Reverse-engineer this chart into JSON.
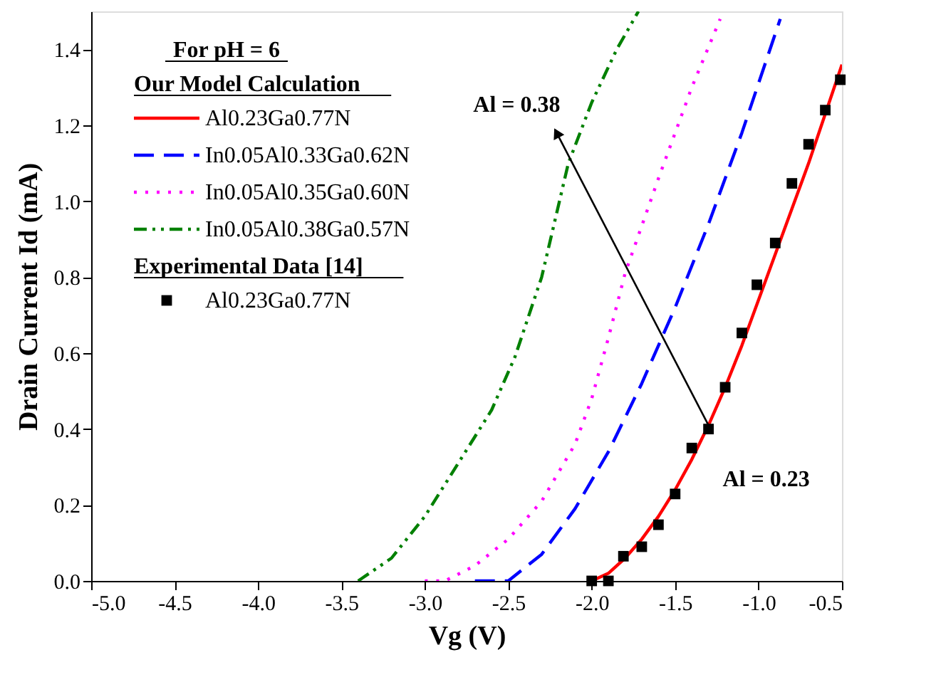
{
  "chart_data": {
    "type": "line",
    "xlabel": "Vg (V)",
    "ylabel": "Drain Current Id (mA)",
    "legend_title": "For pH = 6",
    "xlim": [
      -5.0,
      -0.5
    ],
    "ylim": [
      0,
      1.5
    ],
    "xticks": [
      {
        "value": -5.0,
        "label": "-5.0"
      },
      -4.5,
      {
        "value": -4.0,
        "label": "-4.0"
      },
      -3.5,
      {
        "value": -3.0,
        "label": "-3.0"
      },
      -2.5,
      {
        "value": -2.0,
        "label": "-2.0"
      },
      -1.5,
      {
        "value": -1.0,
        "label": "-1.0"
      },
      -0.5
    ],
    "yticks": [
      {
        "value": 0,
        "label": "0.0"
      },
      0.2,
      0.4,
      0.6,
      0.8,
      {
        "value": 1.0,
        "label": "1.0"
      },
      1.2,
      1.4
    ],
    "grid": false,
    "legend": "top left",
    "series": [
      {
        "name": "Al0.23Ga0.77N",
        "color": "#ff0000",
        "line_style": "solid",
        "x": [
          -2.0,
          -1.9,
          -1.8,
          -1.7,
          -1.6,
          -1.5,
          -1.4,
          -1.3,
          -1.2,
          -1.1,
          -1.0,
          -0.9,
          -0.8,
          -0.7,
          -0.6,
          -0.5
        ],
        "values": [
          0,
          0.02,
          0.06,
          0.11,
          0.17,
          0.24,
          0.32,
          0.41,
          0.51,
          0.62,
          0.74,
          0.86,
          0.98,
          1.1,
          1.23,
          1.36
        ]
      },
      {
        "name": "In0.05Al0.33Ga0.62N",
        "color": "#0000ff",
        "line_style": "dashed",
        "x": [
          -2.7,
          -2.5,
          -2.3,
          -2.1,
          -1.9,
          -1.7,
          -1.5,
          -1.3,
          -1.1,
          -0.87
        ],
        "values": [
          0,
          0,
          0.07,
          0.19,
          0.34,
          0.52,
          0.72,
          0.94,
          1.18,
          1.48
        ]
      },
      {
        "name": "In0.05Al0.35Ga0.60N",
        "color": "#ff00ff",
        "line_style": "dotted",
        "x": [
          -3.0,
          -2.88,
          -2.7,
          -2.5,
          -2.3,
          -2.1,
          -2.0,
          -1.9,
          -1.8,
          -1.6,
          -1.4,
          -1.23
        ],
        "values": [
          0,
          0,
          0.04,
          0.11,
          0.21,
          0.36,
          0.48,
          0.64,
          0.81,
          1.06,
          1.3,
          1.48
        ]
      },
      {
        "name": "In0.05Al0.38Ga0.57N",
        "color": "#008000",
        "line_style": "dashdot",
        "x": [
          -3.4,
          -3.2,
          -3.0,
          -2.8,
          -2.6,
          -2.46,
          -2.3,
          -2.14,
          -2.0,
          -1.85,
          -1.72
        ],
        "values": [
          0,
          0.06,
          0.17,
          0.31,
          0.45,
          0.59,
          0.8,
          1.1,
          1.26,
          1.4,
          1.5
        ]
      },
      {
        "name": "Al0.23Ga0.77N",
        "type": "scatter",
        "marker": "square",
        "color": "#000000",
        "x": [
          -2.0,
          -1.9,
          -1.81,
          -1.7,
          -1.6,
          -1.5,
          -1.4,
          -1.3,
          -1.2,
          -1.1,
          -1.01,
          -0.9,
          -0.8,
          -0.7,
          -0.6,
          -0.51
        ],
        "values": [
          0,
          0,
          0.065,
          0.09,
          0.148,
          0.229,
          0.35,
          0.4,
          0.51,
          0.653,
          0.78,
          0.89,
          1.047,
          1.15,
          1.24,
          1.32
        ]
      }
    ],
    "annotations": [
      "Our Model Calculation",
      "Experimental Data [14]",
      {
        "text": "Al = 0.38",
        "x": -2.21,
        "y": 1.18
      },
      {
        "text": "Al = 0.23",
        "x": -1.3,
        "y": 0.41
      }
    ]
  }
}
